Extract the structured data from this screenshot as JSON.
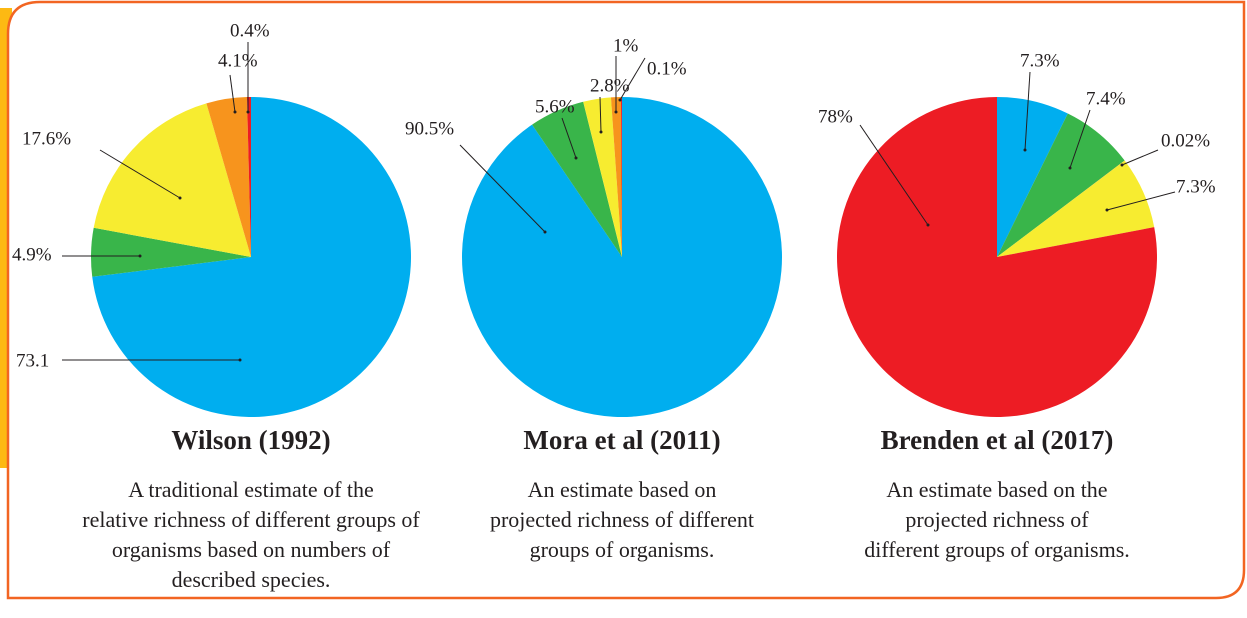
{
  "chart_data": [
    {
      "type": "pie",
      "title": "Wilson (1992)",
      "description": [
        "A traditional estimate of the",
        "relative richness of different groups of",
        "organisms based on numbers of",
        "described species."
      ],
      "values": [
        73.1,
        4.9,
        17.6,
        4.1,
        0.4
      ],
      "value_labels": [
        "73.1",
        "4.9%",
        "17.6%",
        "4.1%",
        "0.4%"
      ],
      "colors": [
        "#00aeef",
        "#39b54a",
        "#f7ec30",
        "#f7941d",
        "#ed1c24"
      ]
    },
    {
      "type": "pie",
      "title": "Mora et al (2011)",
      "description": [
        "An estimate based on",
        "projected richness of different",
        "groups of organisms."
      ],
      "values": [
        90.5,
        5.6,
        2.8,
        1,
        0.1
      ],
      "value_labels": [
        "90.5%",
        "5.6%",
        "2.8%",
        "1%",
        "0.1%"
      ],
      "colors": [
        "#00aeef",
        "#39b54a",
        "#f7ec30",
        "#f7941d",
        "#ed1c24"
      ]
    },
    {
      "type": "pie",
      "title": "Brenden et al (2017)",
      "description": [
        "An estimate based on the",
        "projected richness of",
        "different groups of organisms."
      ],
      "values": [
        7.3,
        7.4,
        0.02,
        7.3,
        78
      ],
      "value_labels": [
        "7.3%",
        "7.4%",
        "0.02%",
        "7.3%",
        "78%"
      ],
      "colors": [
        "#00aeef",
        "#39b54a",
        "#f7941d",
        "#f7ec30",
        "#ed1c24"
      ]
    }
  ]
}
